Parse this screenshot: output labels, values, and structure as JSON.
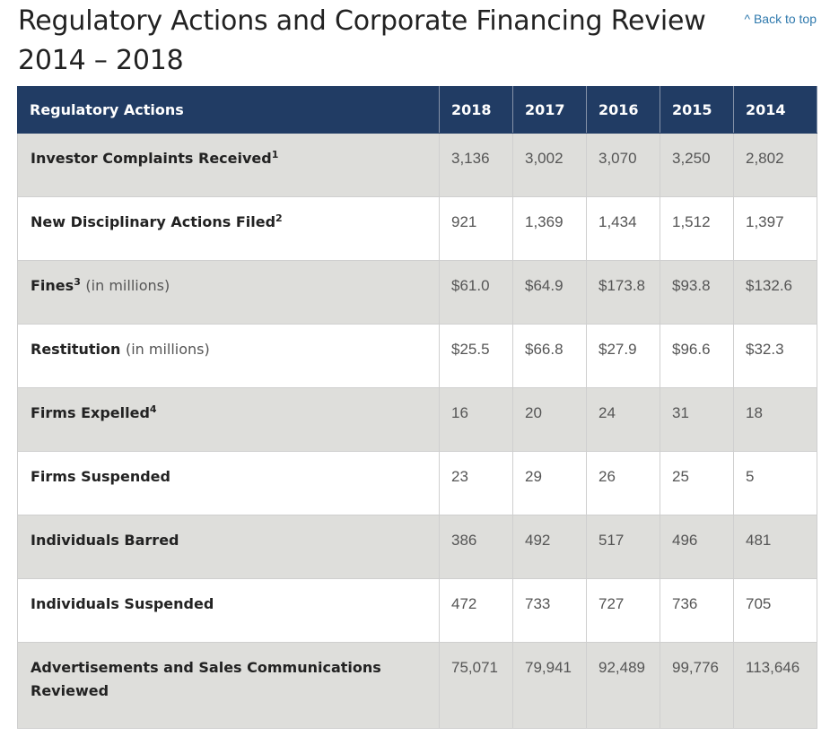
{
  "title_line1": "Regulatory Actions and Corporate Financing Review",
  "title_line2": "2014 – 2018",
  "back_to_top": "^ Back to top",
  "table": {
    "header": [
      "Regulatory Actions",
      "2018",
      "2017",
      "2016",
      "2015",
      "2014"
    ],
    "rows": [
      {
        "label": "Investor Complaints Received",
        "sup": "1",
        "note": "",
        "values": [
          "3,136",
          "3,002",
          "3,070",
          "3,250",
          "2,802"
        ]
      },
      {
        "label": "New Disciplinary Actions Filed",
        "sup": "2",
        "note": "",
        "values": [
          "921",
          "1,369",
          "1,434",
          "1,512",
          "1,397"
        ]
      },
      {
        "label": "Fines",
        "sup": "3",
        "note": "(in millions)",
        "values": [
          "$61.0",
          "$64.9",
          "$173.8",
          "$93.8",
          "$132.6"
        ]
      },
      {
        "label": "Restitution",
        "sup": "",
        "note": "(in millions)",
        "values": [
          "$25.5",
          "$66.8",
          "$27.9",
          "$96.6",
          "$32.3"
        ]
      },
      {
        "label": "Firms Expelled",
        "sup": "4",
        "note": "",
        "values": [
          "16",
          "20",
          "24",
          "31",
          "18"
        ]
      },
      {
        "label": "Firms Suspended",
        "sup": "",
        "note": "",
        "values": [
          "23",
          "29",
          "26",
          "25",
          "5"
        ]
      },
      {
        "label": "Individuals Barred",
        "sup": "",
        "note": "",
        "values": [
          "386",
          "492",
          "517",
          "496",
          "481"
        ]
      },
      {
        "label": "Individuals Suspended",
        "sup": "",
        "note": "",
        "values": [
          "472",
          "733",
          "727",
          "736",
          "705"
        ]
      },
      {
        "label": "Advertisements and Sales Communications Reviewed",
        "sup": "",
        "note": "",
        "values": [
          "75,071",
          "79,941",
          "92,489",
          "99,776",
          "113,646"
        ]
      }
    ]
  },
  "colors": {
    "header_bg": "#213c64",
    "shaded_row_bg": "#dededb",
    "link": "#2f79ad"
  }
}
